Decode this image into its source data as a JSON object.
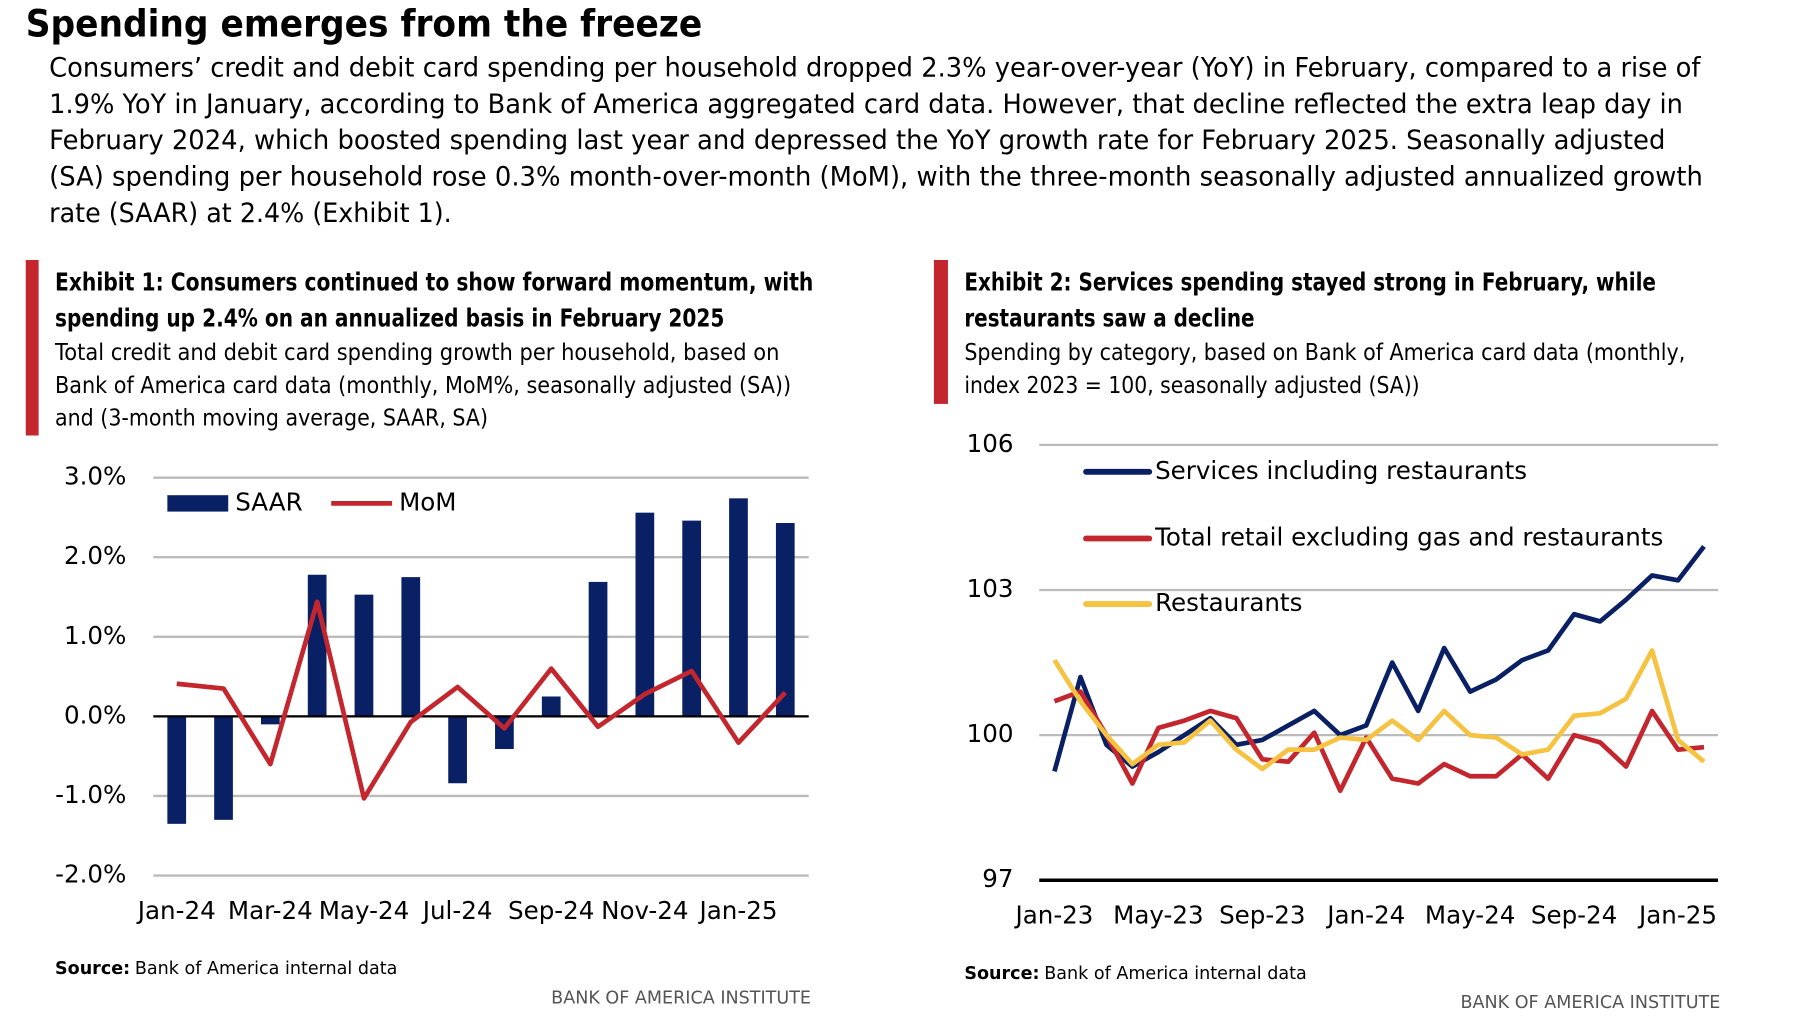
{
  "title": "Spending emerges from the freeze",
  "intro": [
    "Consumers’ credit and debit card spending per household dropped 2.3% year-over-year (YoY) in February, compared to a rise of",
    "1.9% YoY in January, according to Bank of America aggregated card data. However, that decline reflected the extra leap day in",
    "February 2024, which boosted spending last year and depressed the YoY growth rate for February 2025. Seasonally adjusted",
    "(SA) spending per household rose 0.3% month-over-month (MoM), with the three-month seasonally adjusted annualized growth",
    "rate (SAAR) at 2.4% (Exhibit 1)."
  ],
  "chart_data": [
    {
      "type": "combo",
      "title": [
        "Exhibit 1: Consumers continued to show forward momentum, with",
        "spending up 2.4% on an annualized basis in February 2025"
      ],
      "subtitle": [
        "Total credit and debit card spending growth per household, based on",
        "Bank of America card data (monthly, MoM%, seasonally adjusted (SA))",
        "and (3-month moving average, SAAR, SA)"
      ],
      "categories": [
        "Jan-24",
        null,
        "Mar-24",
        null,
        "May-24",
        null,
        "Jul-24",
        null,
        "Sep-24",
        null,
        "Nov-24",
        null,
        "Jan-25",
        null
      ],
      "series": [
        {
          "name": "SAAR",
          "type": "bar",
          "color": "#0a2064",
          "values": [
            -1.35,
            -1.3,
            -0.1,
            1.78,
            1.53,
            1.75,
            -0.84,
            -0.41,
            0.25,
            1.69,
            2.56,
            2.46,
            2.74,
            2.43
          ]
        },
        {
          "name": "MoM",
          "type": "line",
          "color": "#c4262e",
          "values": [
            0.41,
            0.35,
            -0.6,
            1.44,
            -1.03,
            -0.07,
            0.37,
            -0.15,
            0.6,
            -0.13,
            0.28,
            0.57,
            -0.33,
            0.3
          ]
        }
      ],
      "ylim": [
        -2,
        3
      ],
      "yticks": [
        {
          "value": -2,
          "label": "-2.0%"
        },
        {
          "value": -1,
          "label": "-1.0%"
        },
        {
          "value": 0,
          "label": "0.0%"
        },
        {
          "value": 1,
          "label": "1.0%"
        },
        {
          "value": 2,
          "label": "2.0%"
        },
        {
          "value": 3,
          "label": "3.0%"
        }
      ],
      "grid": true,
      "legend": "top",
      "source_label": "Source:",
      "source": "Bank of America internal data",
      "footer": "BANK OF AMERICA INSTITUTE"
    },
    {
      "type": "line",
      "title": [
        "Exhibit 2: Services spending stayed strong in February, while",
        "restaurants saw a decline"
      ],
      "subtitle": [
        "Spending by category, based on Bank of America card data (monthly,",
        "index 2023 = 100, seasonally adjusted (SA))"
      ],
      "categories": [
        "Jan-23",
        null,
        null,
        null,
        "May-23",
        null,
        null,
        null,
        "Sep-23",
        null,
        null,
        null,
        "Jan-24",
        null,
        null,
        null,
        "May-24",
        null,
        null,
        null,
        "Sep-24",
        null,
        null,
        null,
        "Jan-25",
        null
      ],
      "series": [
        {
          "name": "Services including restaurants",
          "color": "#0a2064",
          "values": [
            99.25,
            101.2,
            99.8,
            99.35,
            99.65,
            100,
            100.35,
            99.8,
            99.9,
            100.2,
            100.5,
            100,
            100.2,
            101.5,
            100.5,
            101.8,
            100.9,
            101.15,
            101.55,
            101.75,
            102.5,
            102.35,
            102.8,
            103.3,
            103.2,
            103.9
          ]
        },
        {
          "name": "Total retail excluding gas and restaurants",
          "color": "#c4262e",
          "values": [
            100.7,
            100.9,
            100,
            99.0,
            100.15,
            100.3,
            100.5,
            100.35,
            99.5,
            99.45,
            100.05,
            98.85,
            99.95,
            99.1,
            99.0,
            99.4,
            99.15,
            99.15,
            99.6,
            99.1,
            100,
            99.85,
            99.35,
            100.5,
            99.7,
            99.75
          ]
        },
        {
          "name": "Restaurants",
          "color": "#f5c242",
          "values": [
            101.55,
            100.7,
            100,
            99.4,
            99.8,
            99.85,
            100.3,
            99.7,
            99.3,
            99.7,
            99.7,
            99.95,
            99.9,
            100.3,
            99.9,
            100.5,
            100,
            99.95,
            99.6,
            99.7,
            100.4,
            100.45,
            100.75,
            101.75,
            99.9,
            99.45
          ]
        }
      ],
      "ylim": [
        97,
        106
      ],
      "yticks": [
        97,
        100,
        103,
        106
      ],
      "grid": true,
      "legend": "top-left",
      "source_label": "Source:",
      "source": "Bank of America internal data",
      "footer": "BANK OF AMERICA INSTITUTE"
    }
  ]
}
